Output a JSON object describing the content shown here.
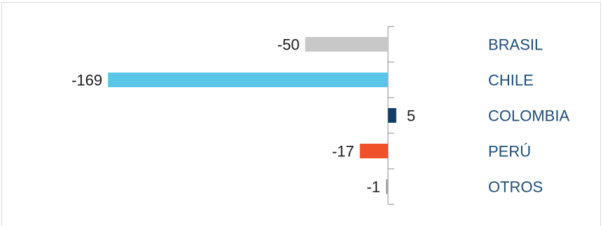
{
  "chart_data": {
    "type": "bar",
    "orientation": "horizontal",
    "categories": [
      "BRASIL",
      "CHILE",
      "COLOMBIA",
      "PERÚ",
      "OTROS"
    ],
    "values": [
      -50,
      -169,
      5,
      -17,
      -1
    ],
    "value_labels": [
      "-50",
      "-169",
      "5",
      "-17",
      "-1"
    ],
    "colors": [
      "#c8c8c8",
      "#5bc5e8",
      "#123f6a",
      "#f0512a",
      "#a6a6a6"
    ],
    "xlim": [
      -170,
      5
    ],
    "grid": false,
    "legend": "none",
    "title": "",
    "xlabel": "",
    "ylabel": "",
    "category_label_color": "#1f4e79"
  }
}
